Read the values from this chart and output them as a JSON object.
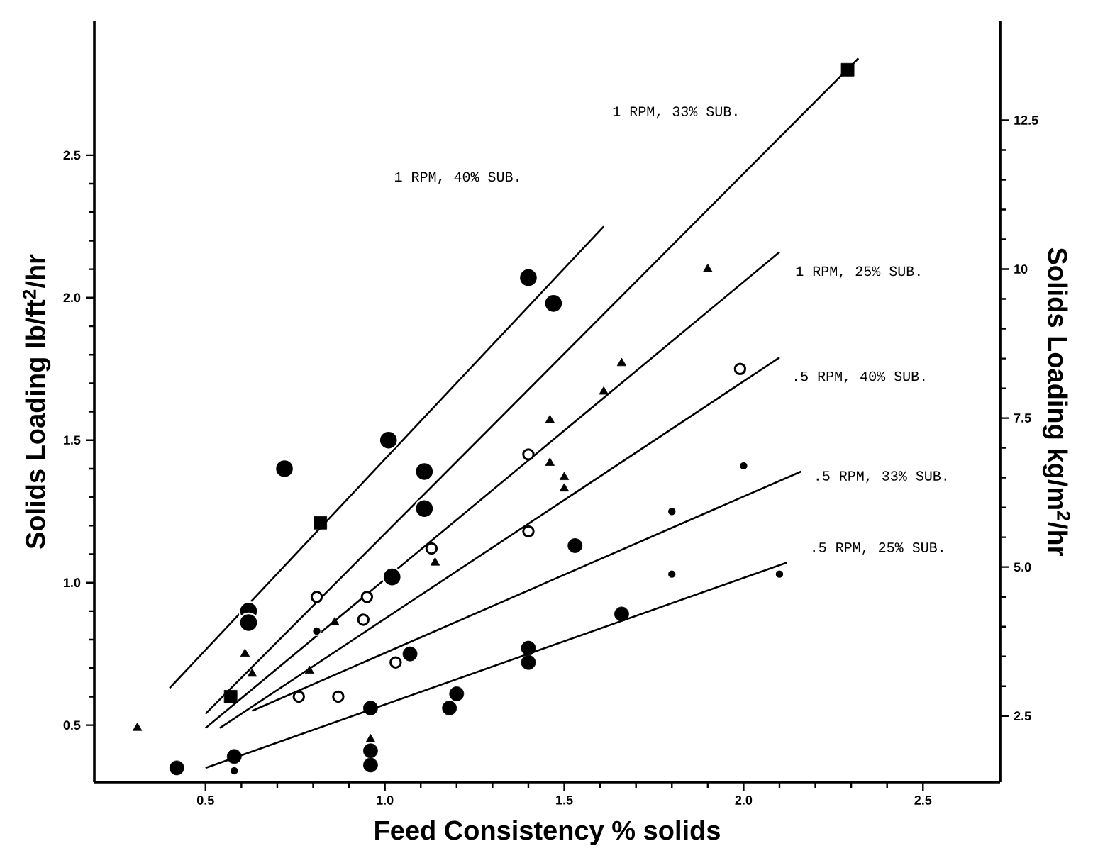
{
  "chart_data": {
    "type": "scatter",
    "xlabel": "Feed Consistency   % solids",
    "ylabel": "Solids Loading   lb/ft$^{2}$/hr",
    "y2label": "Solids Loading   kg/m$^{2}$/hr",
    "xlim": [
      0.19,
      2.715
    ],
    "ylim": [
      0.3,
      2.97
    ],
    "y2lim": [
      1.39,
      14.16
    ],
    "xticks": [
      {
        "value": 0.5,
        "label": "0.5"
      },
      {
        "value": 1.0,
        "label": "1.0"
      },
      {
        "value": 1.5,
        "label": "1.5"
      },
      {
        "value": 2.0,
        "label": "2.0"
      },
      {
        "value": 2.5,
        "label": "2.5"
      }
    ],
    "yticks": [
      {
        "value": 0.5,
        "label": "0.5"
      },
      {
        "value": 1.0,
        "label": "1.0"
      },
      {
        "value": 1.5,
        "label": "1.5"
      },
      {
        "value": 2.0,
        "label": "2.0"
      },
      {
        "value": 2.5,
        "label": "2.5"
      }
    ],
    "y2ticks": [
      {
        "value": 2.5,
        "label": "2.5"
      },
      {
        "value": 5.0,
        "label": "5.0"
      },
      {
        "value": 7.5,
        "label": "7.5"
      },
      {
        "value": 10,
        "label": "10"
      },
      {
        "value": 12.5,
        "label": "12.5"
      }
    ],
    "grid": false,
    "series": [
      {
        "color": "#000000",
        "marker": "circle",
        "x": [
          0.72,
          1.01,
          1.11,
          1.11,
          1.4,
          1.47,
          1.02,
          0.62,
          0.62
        ],
        "values": [
          1.4,
          1.5,
          1.39,
          1.26,
          2.07,
          1.98,
          1.02,
          0.9,
          0.86
        ]
      },
      {
        "color": "#000000",
        "marker": "square",
        "x": [
          0.57,
          0.82,
          2.29
        ],
        "values": [
          0.6,
          1.21,
          2.8
        ]
      },
      {
        "color": "#000000",
        "marker": "triangle",
        "x": [
          0.31,
          0.61,
          0.63,
          0.79,
          0.86,
          0.96,
          1.14,
          1.46,
          1.46,
          1.5,
          1.5,
          1.61,
          1.66,
          1.9
        ],
        "values": [
          0.49,
          0.75,
          0.68,
          0.69,
          0.86,
          0.45,
          1.07,
          1.57,
          1.42,
          1.37,
          1.33,
          1.67,
          1.77,
          2.1
        ]
      },
      {
        "color": "#000000",
        "marker": "circle",
        "x": [
          0.76,
          0.87,
          0.81,
          0.95,
          0.94,
          1.03,
          1.13,
          1.4,
          1.4,
          1.99
        ],
        "values": [
          0.6,
          0.6,
          0.95,
          0.95,
          0.87,
          0.72,
          1.12,
          1.45,
          1.18,
          1.75
        ]
      },
      {
        "color": "#000000",
        "marker": "circle",
        "x": [
          0.58,
          0.81,
          1.8,
          1.8,
          2.0,
          2.1
        ],
        "values": [
          0.34,
          0.83,
          1.25,
          1.03,
          1.41,
          1.03
        ]
      },
      {
        "color": "#000000",
        "marker": "circle",
        "x": [
          0.42,
          0.58,
          0.96,
          0.96,
          0.96,
          1.07,
          1.2,
          1.18,
          1.4,
          1.4,
          1.53,
          1.66
        ],
        "values": [
          0.35,
          0.39,
          0.56,
          0.41,
          0.36,
          0.75,
          0.61,
          0.56,
          0.77,
          0.72,
          1.13,
          0.89
        ]
      },
      {
        "type": "line",
        "color": "#000000",
        "marker": "none",
        "x": [
          0.4,
          1.61
        ],
        "values": [
          0.63,
          2.25
        ]
      },
      {
        "type": "line",
        "color": "#000000",
        "marker": "none",
        "x": [
          0.5,
          2.32
        ],
        "values": [
          0.54,
          2.84
        ]
      },
      {
        "type": "line",
        "color": "#000000",
        "marker": "none",
        "x": [
          0.5,
          2.1
        ],
        "values": [
          0.49,
          2.16
        ]
      },
      {
        "type": "line",
        "color": "#000000",
        "marker": "none",
        "x": [
          0.54,
          2.1
        ],
        "values": [
          0.49,
          1.79
        ]
      },
      {
        "type": "line",
        "color": "#000000",
        "marker": "none",
        "x": [
          0.63,
          2.16
        ],
        "values": [
          0.55,
          1.39
        ]
      },
      {
        "type": "line",
        "color": "#000000",
        "marker": "none",
        "x": [
          0.5,
          2.12
        ],
        "values": [
          0.35,
          1.07
        ]
      }
    ],
    "annotations": [
      "1 RPM, 40% SUB.",
      "1 RPM, 33% SUB.",
      "1 RPM, 25% SUB.",
      ".5 RPM, 40% SUB.",
      ".5 RPM, 33% SUB.",
      ".5 RPM, 25% SUB."
    ]
  }
}
